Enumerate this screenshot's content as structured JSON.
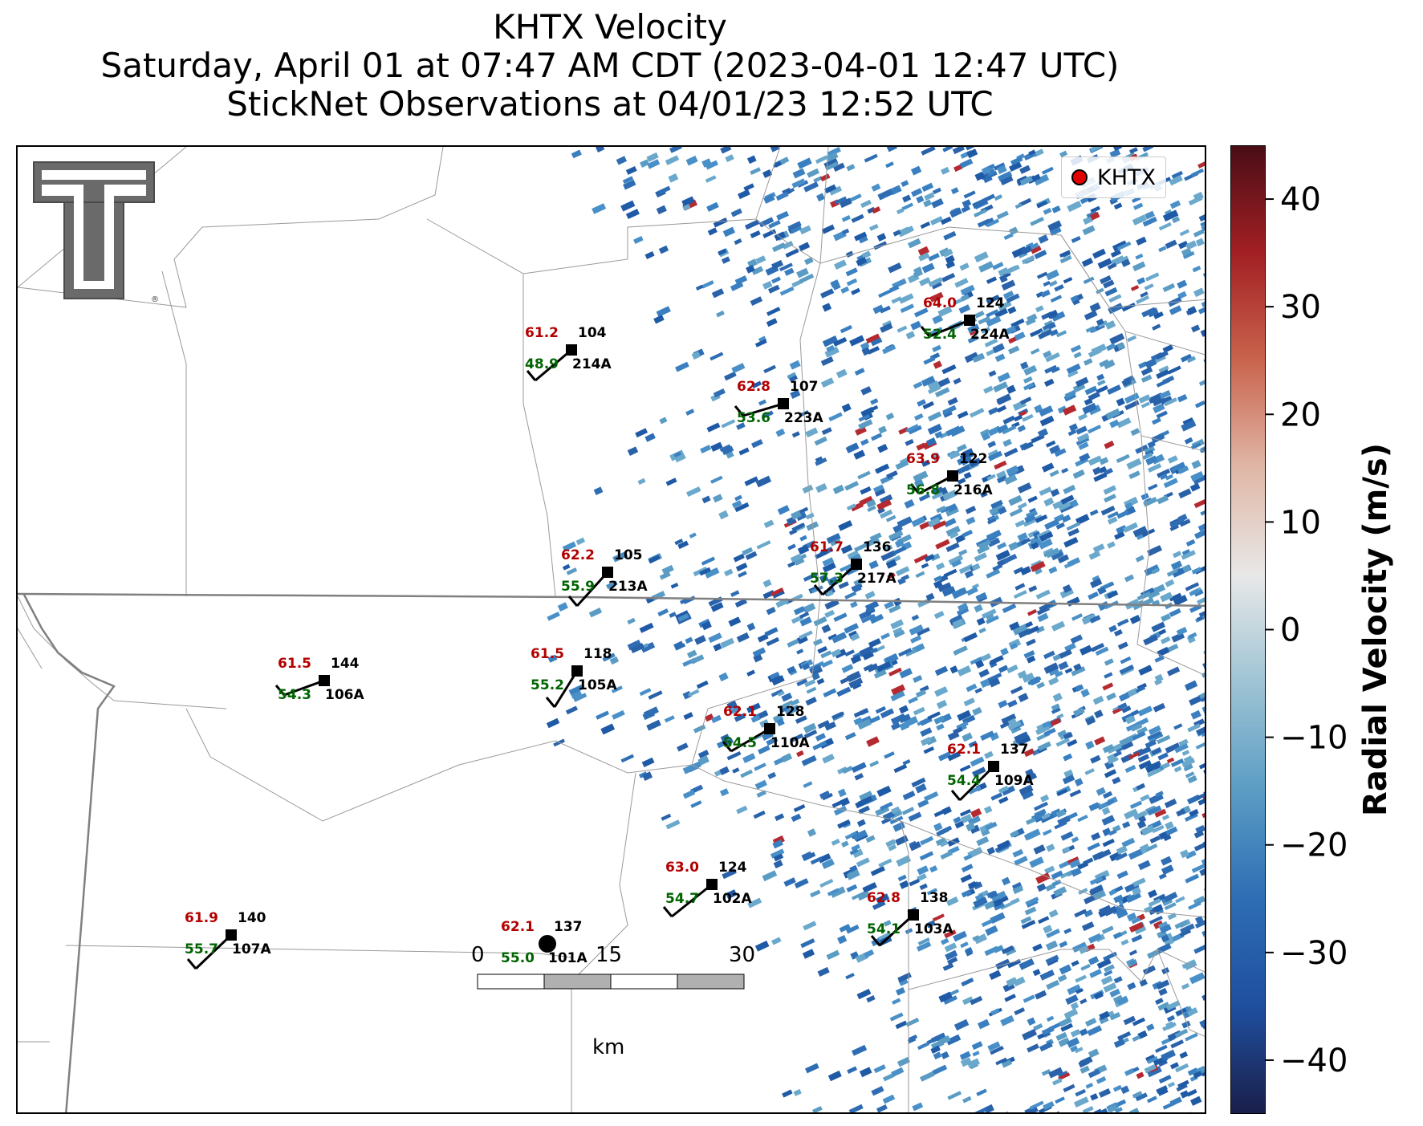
{
  "title": {
    "line1": "KHTX Velocity",
    "line2": "Saturday, April 01 at 07:47 AM CDT (2023-04-01 12:47 UTC)",
    "line3": "StickNet Observations at 04/01/23 12:52 UTC"
  },
  "legend": {
    "label": "KHTX",
    "marker_color": "#e00000"
  },
  "logo": {
    "icon": "texas-tech-double-t-logo",
    "text": "TT"
  },
  "colorbar": {
    "label": "Radial Velocity (m/s)",
    "min": -45,
    "max": 45,
    "ticks": [
      "40",
      "30",
      "20",
      "10",
      "0",
      "−10",
      "−20",
      "−30",
      "−40"
    ],
    "tick_values": [
      40,
      30,
      20,
      10,
      0,
      -10,
      -20,
      -30,
      -40
    ],
    "colors": [
      "#1a1f4a",
      "#1f4fa0",
      "#2e6db4",
      "#5a9cc4",
      "#9ec3d4",
      "#e8e8e8",
      "#e0b7a6",
      "#c9644d",
      "#a32024",
      "#4a0d16"
    ]
  },
  "scalebar": {
    "labels": [
      "0",
      "15",
      "30"
    ],
    "unit": "km"
  },
  "stations": [
    {
      "id": "214A",
      "temp": "61.2",
      "dew": "48.9",
      "pressure": "104"
    },
    {
      "id": "223A",
      "temp": "62.8",
      "dew": "53.6",
      "pressure": "107"
    },
    {
      "id": "224A",
      "temp": "64.0",
      "dew": "52.4",
      "pressure": "124"
    },
    {
      "id": "216A",
      "temp": "63.9",
      "dew": "56.8",
      "pressure": "122"
    },
    {
      "id": "213A",
      "temp": "62.2",
      "dew": "55.9",
      "pressure": "105"
    },
    {
      "id": "217A",
      "temp": "61.7",
      "dew": "57.3",
      "pressure": "136"
    },
    {
      "id": "106A",
      "temp": "61.5",
      "dew": "54.3",
      "pressure": "144"
    },
    {
      "id": "105A",
      "temp": "61.5",
      "dew": "55.2",
      "pressure": "118"
    },
    {
      "id": "110A",
      "temp": "62.1",
      "dew": "54.5",
      "pressure": "128"
    },
    {
      "id": "109A",
      "temp": "62.1",
      "dew": "54.4",
      "pressure": "137"
    },
    {
      "id": "102A",
      "temp": "63.0",
      "dew": "54.7",
      "pressure": "124"
    },
    {
      "id": "103A",
      "temp": "62.8",
      "dew": "54.1",
      "pressure": "138"
    },
    {
      "id": "107A",
      "temp": "61.9",
      "dew": "55.7",
      "pressure": "140"
    },
    {
      "id": "101A",
      "temp": "62.1",
      "dew": "55.0",
      "pressure": "137",
      "calm": true
    }
  ],
  "colors": {
    "temp": "#b30000",
    "dew": "#006400",
    "station": "#000000",
    "county_line": "#9a9a9a",
    "state_line": "#808080"
  }
}
